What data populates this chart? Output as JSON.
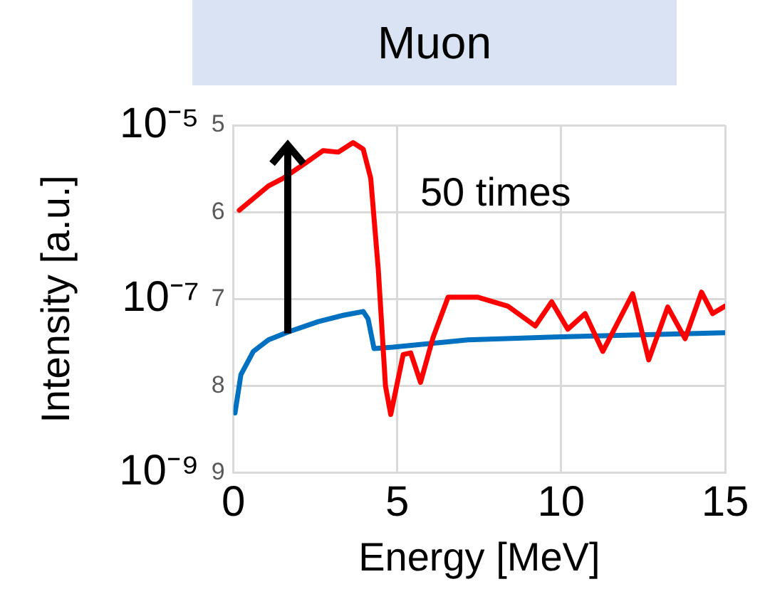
{
  "chart_data": {
    "type": "line",
    "title": "Muon",
    "xlabel": "Energy [MeV]",
    "ylabel": "Intensity [a.u.]",
    "annotations": [
      "50 times",
      "5",
      "6",
      "7",
      "8",
      "9"
    ],
    "series": [
      {
        "color": "#ff0000",
        "x": [
          0.18,
          1.07,
          1.52,
          2.21,
          2.74,
          3.2,
          3.65,
          3.96,
          4.19,
          4.42,
          4.64,
          4.8,
          5.18,
          5.41,
          5.71,
          6.09,
          6.55,
          7.46,
          8.37,
          9.21,
          9.71,
          10.2,
          10.73,
          11.27,
          12.18,
          12.67,
          13.25,
          13.78,
          14.28,
          14.62,
          15
        ],
        "values": [
          1.05e-06,
          2e-06,
          2.45e-06,
          3.7e-06,
          5.1e-06,
          4.9e-06,
          6.3e-06,
          5.3e-06,
          2.45e-06,
          2.2e-07,
          1e-08,
          4.7e-09,
          2.3e-08,
          2.4e-08,
          1.1e-08,
          3.6e-08,
          1.05e-07,
          1.05e-07,
          8.3e-08,
          4.9e-08,
          9.3e-08,
          4.5e-08,
          6.8e-08,
          2.5e-08,
          1.15e-07,
          2e-08,
          8.1e-08,
          3.5e-08,
          1.2e-07,
          6.8e-08,
          8.3e-08
        ]
      },
      {
        "color": "#0070c0",
        "x": [
          0.05,
          0.23,
          0.61,
          1.07,
          1.68,
          2.59,
          3.35,
          3.96,
          4.11,
          4.29,
          4.87,
          7.16,
          10.2,
          15
        ],
        "values": [
          4.9e-09,
          1.35e-08,
          2.5e-08,
          3.4e-08,
          4.2e-08,
          5.5e-08,
          6.5e-08,
          7.2e-08,
          5.9e-08,
          2.7e-08,
          2.8e-08,
          3.4e-08,
          3.7e-08,
          4.1e-08
        ]
      }
    ],
    "xlim": [
      0,
      15
    ],
    "xticks": [
      0,
      5,
      10,
      15
    ],
    "ylim": [
      1e-09,
      1e-05
    ],
    "yticks": [
      {
        "value": 1e-05,
        "label": "10⁻⁵"
      },
      {
        "value": 1e-06,
        "label": null
      },
      {
        "value": 1e-07,
        "label": "10⁻⁷"
      },
      {
        "value": 1e-08,
        "label": null
      },
      {
        "value": 1e-09,
        "label": "10⁻⁹"
      }
    ],
    "log": "y",
    "grid": true,
    "legend": false,
    "marker": "none",
    "line_style": "solid"
  }
}
